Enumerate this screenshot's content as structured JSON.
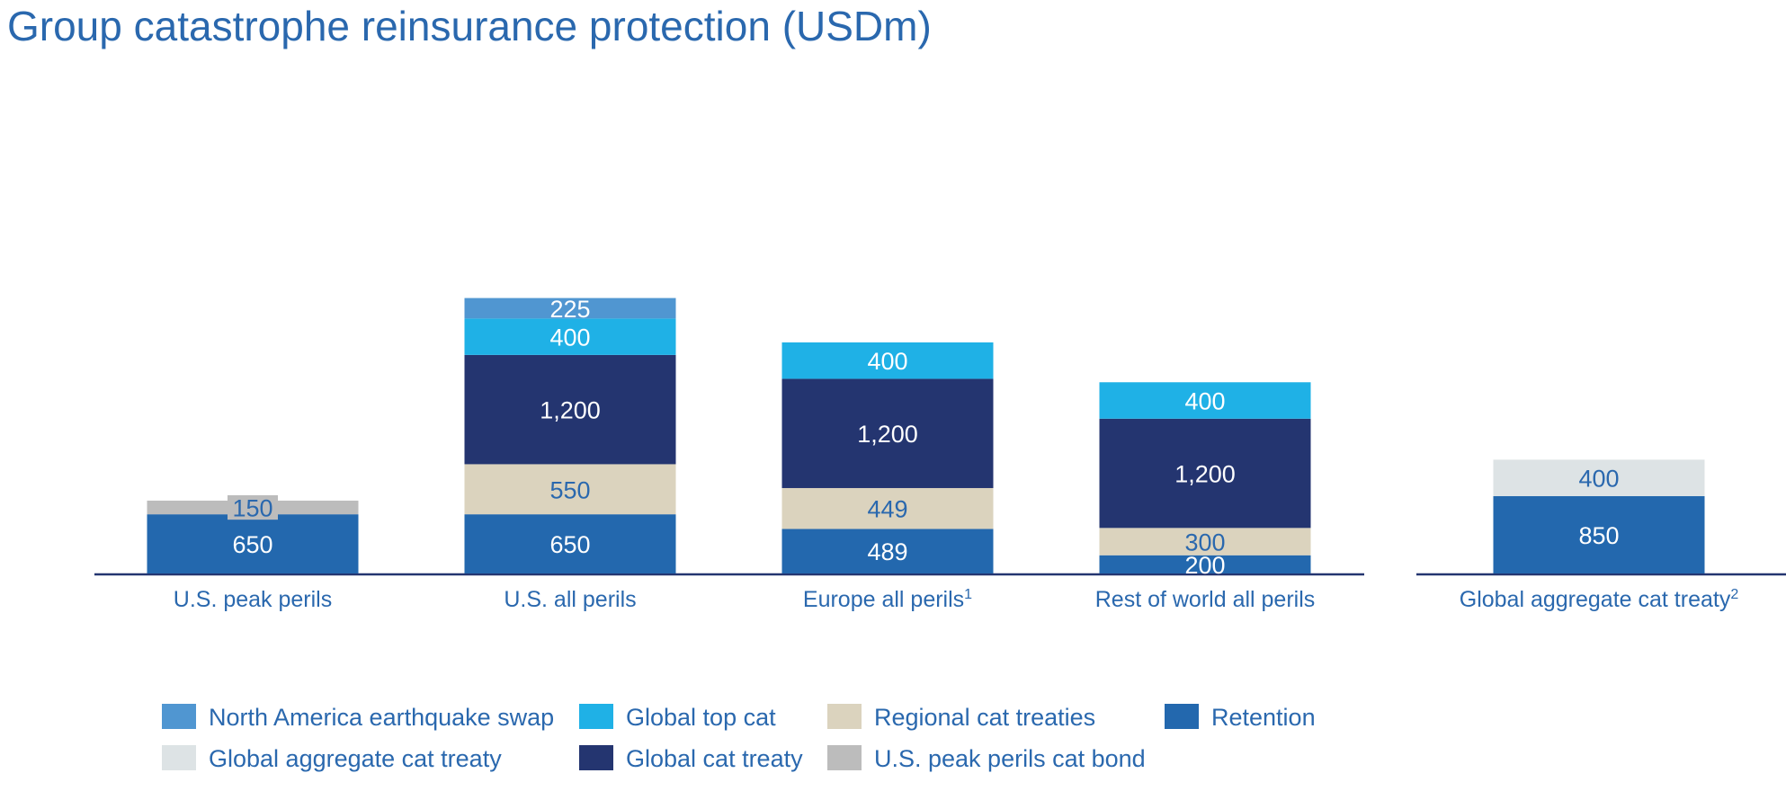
{
  "chart_data": {
    "type": "bar",
    "stacked": true,
    "title": "Group catastrophe reinsurance protection (USDm)",
    "categories": [
      {
        "label": "U.S. peak perils",
        "sup": ""
      },
      {
        "label": "U.S. all perils",
        "sup": ""
      },
      {
        "label": "Europe all perils",
        "sup": "1"
      },
      {
        "label": "Rest of world all perils",
        "sup": ""
      },
      {
        "label": "Global aggregate cat treaty",
        "sup": "2"
      }
    ],
    "series": [
      {
        "name": "Retention",
        "color": "#2368ae",
        "text_color": "#ffffff",
        "values": [
          650,
          650,
          489,
          200,
          850
        ],
        "labels": [
          "650",
          "650",
          "489",
          "200",
          "850"
        ]
      },
      {
        "name": "U.S. peak perils cat bond",
        "color": "#bcbcbc",
        "text_color": "#2a68ae",
        "values": [
          150,
          null,
          null,
          null,
          null
        ],
        "labels": [
          "150",
          "",
          "",
          "",
          ""
        ]
      },
      {
        "name": "Regional cat treaties",
        "color": "#dbd3be",
        "text_color": "#2a68ae",
        "values": [
          null,
          550,
          449,
          300,
          null
        ],
        "labels": [
          "",
          "550",
          "449",
          "300",
          ""
        ]
      },
      {
        "name": "Global cat treaty",
        "color": "#243570",
        "text_color": "#ffffff",
        "values": [
          null,
          1200,
          1200,
          1200,
          null
        ],
        "labels": [
          "",
          "1,200",
          "1,200",
          "1,200",
          ""
        ]
      },
      {
        "name": "Global top cat",
        "color": "#1fb1e6",
        "text_color": "#ffffff",
        "values": [
          null,
          400,
          400,
          400,
          null
        ],
        "labels": [
          "",
          "400",
          "400",
          "400",
          ""
        ]
      },
      {
        "name": "North America earthquake swap",
        "color": "#5096d1",
        "text_color": "#ffffff",
        "values": [
          null,
          225,
          null,
          null,
          null
        ],
        "labels": [
          "",
          "225",
          "",
          "",
          ""
        ]
      },
      {
        "name": "Global aggregate cat treaty",
        "color": "#dde3e5",
        "text_color": "#2a68ae",
        "values": [
          null,
          null,
          null,
          null,
          400
        ],
        "labels": [
          "",
          "",
          "",
          "",
          "400"
        ]
      }
    ],
    "legend": {
      "placement": "bottom",
      "items": [
        {
          "label": "North America earthquake swap",
          "color": "#5096d1"
        },
        {
          "label": "Global top cat",
          "color": "#1fb1e6"
        },
        {
          "label": "Regional cat treaties",
          "color": "#dbd3be"
        },
        {
          "label": "Retention",
          "color": "#2368ae"
        },
        {
          "label": "Global aggregate cat treaty",
          "color": "#dde3e5"
        },
        {
          "label": "Global cat treaty",
          "color": "#243570"
        },
        {
          "label": "U.S. peak perils cat bond",
          "color": "#bcbcbc"
        }
      ]
    },
    "colors": {
      "text": "#2a68ae",
      "baseline": "#243570"
    },
    "grid": false,
    "xlabel": "",
    "ylabel": ""
  }
}
